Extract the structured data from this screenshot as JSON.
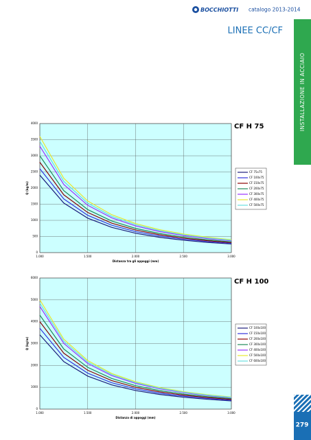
{
  "header": {
    "brand": "BOCCHIOTTI",
    "catalog": "catalogo 2013-2014",
    "title": "LINEE CC/CF"
  },
  "side_tab": "INSTALLAZIONE IN ACCIAIO",
  "page_number": "279",
  "chart_data": [
    {
      "type": "line",
      "title": "CF H 75",
      "x_label": "Distanza tra gli appoggi (mm)",
      "y_label": "Q (kg/m)",
      "x": [
        1000,
        1250,
        1500,
        1750,
        2000,
        2250,
        2500,
        2750,
        3000
      ],
      "xlim": [
        1000,
        3000
      ],
      "xticks": [
        {
          "value": 1000,
          "label": "1.000"
        },
        {
          "value": 1500,
          "label": "1.500"
        },
        {
          "value": 2000,
          "label": "2.000"
        },
        {
          "value": 2500,
          "label": "2.500"
        },
        {
          "value": 3000,
          "label": "3.000"
        }
      ],
      "ylim": [
        0,
        4000
      ],
      "yticks": [
        0,
        500,
        1000,
        1500,
        2000,
        2500,
        3000,
        3500,
        4000
      ],
      "grid": true,
      "series": [
        {
          "name": "CF 75x75",
          "color": "#1a1a7a",
          "values": [
            2400,
            1536,
            1067,
            784,
            600,
            474,
            384,
            317,
            267
          ]
        },
        {
          "name": "CF 100x75",
          "color": "#3333dd",
          "values": [
            2600,
            1664,
            1156,
            849,
            650,
            514,
            416,
            344,
            289
          ]
        },
        {
          "name": "CF 150x75",
          "color": "#8b0000",
          "values": [
            2800,
            1792,
            1244,
            914,
            700,
            553,
            448,
            370,
            311
          ]
        },
        {
          "name": "CF 200x75",
          "color": "#1f8a5a",
          "values": [
            3000,
            1920,
            1333,
            980,
            750,
            593,
            480,
            397,
            333
          ]
        },
        {
          "name": "CF 300x75",
          "color": "#9933ff",
          "values": [
            3300,
            2112,
            1467,
            1078,
            825,
            652,
            528,
            436,
            367
          ]
        },
        {
          "name": "CF 400x75",
          "color": "#e8e830",
          "values": [
            3600,
            2304,
            1600,
            1176,
            900,
            711,
            576,
            476,
            400
          ]
        },
        {
          "name": "CF 500x75",
          "color": "#66e0e0",
          "values": [
            3450,
            2208,
            1533,
            1127,
            863,
            681,
            552,
            456,
            383
          ]
        }
      ]
    },
    {
      "type": "line",
      "title": "CF H 100",
      "x_label": "Distanza di appoggi (mm)",
      "y_label": "Q (kg/m)",
      "x": [
        1000,
        1250,
        1500,
        1750,
        2000,
        2250,
        2500,
        2750,
        3000
      ],
      "xlim": [
        1000,
        3000
      ],
      "xticks": [
        {
          "value": 1000,
          "label": "1.000"
        },
        {
          "value": 1500,
          "label": "1.500"
        },
        {
          "value": 2000,
          "label": "2.000"
        },
        {
          "value": 2500,
          "label": "2.500"
        },
        {
          "value": 3000,
          "label": "3.000"
        }
      ],
      "ylim": [
        0,
        6000
      ],
      "yticks": [
        0,
        1000,
        2000,
        3000,
        4000,
        5000,
        6000
      ],
      "grid": true,
      "series": [
        {
          "name": "CF 100x100",
          "color": "#1a1a7a",
          "values": [
            3400,
            2176,
            1511,
            1110,
            850,
            672,
            544,
            450,
            378
          ]
        },
        {
          "name": "CF 150x100",
          "color": "#3333dd",
          "values": [
            3700,
            2368,
            1644,
            1208,
            925,
            731,
            592,
            489,
            411
          ]
        },
        {
          "name": "CF 200x100",
          "color": "#8b0000",
          "values": [
            4000,
            2560,
            1778,
            1306,
            1000,
            790,
            640,
            529,
            444
          ]
        },
        {
          "name": "CF 300x100",
          "color": "#1f8a5a",
          "values": [
            4300,
            2752,
            1911,
            1404,
            1075,
            849,
            688,
            569,
            478
          ]
        },
        {
          "name": "CF 400x100",
          "color": "#9933ff",
          "values": [
            4700,
            3008,
            2089,
            1535,
            1175,
            928,
            752,
            621,
            522
          ]
        },
        {
          "name": "CF 500x100",
          "color": "#e8e830",
          "values": [
            5000,
            3200,
            2222,
            1633,
            1250,
            988,
            800,
            661,
            556
          ]
        },
        {
          "name": "CF 600x100",
          "color": "#66e0e0",
          "values": [
            4850,
            3104,
            2156,
            1584,
            1213,
            958,
            776,
            641,
            539
          ]
        }
      ]
    }
  ]
}
